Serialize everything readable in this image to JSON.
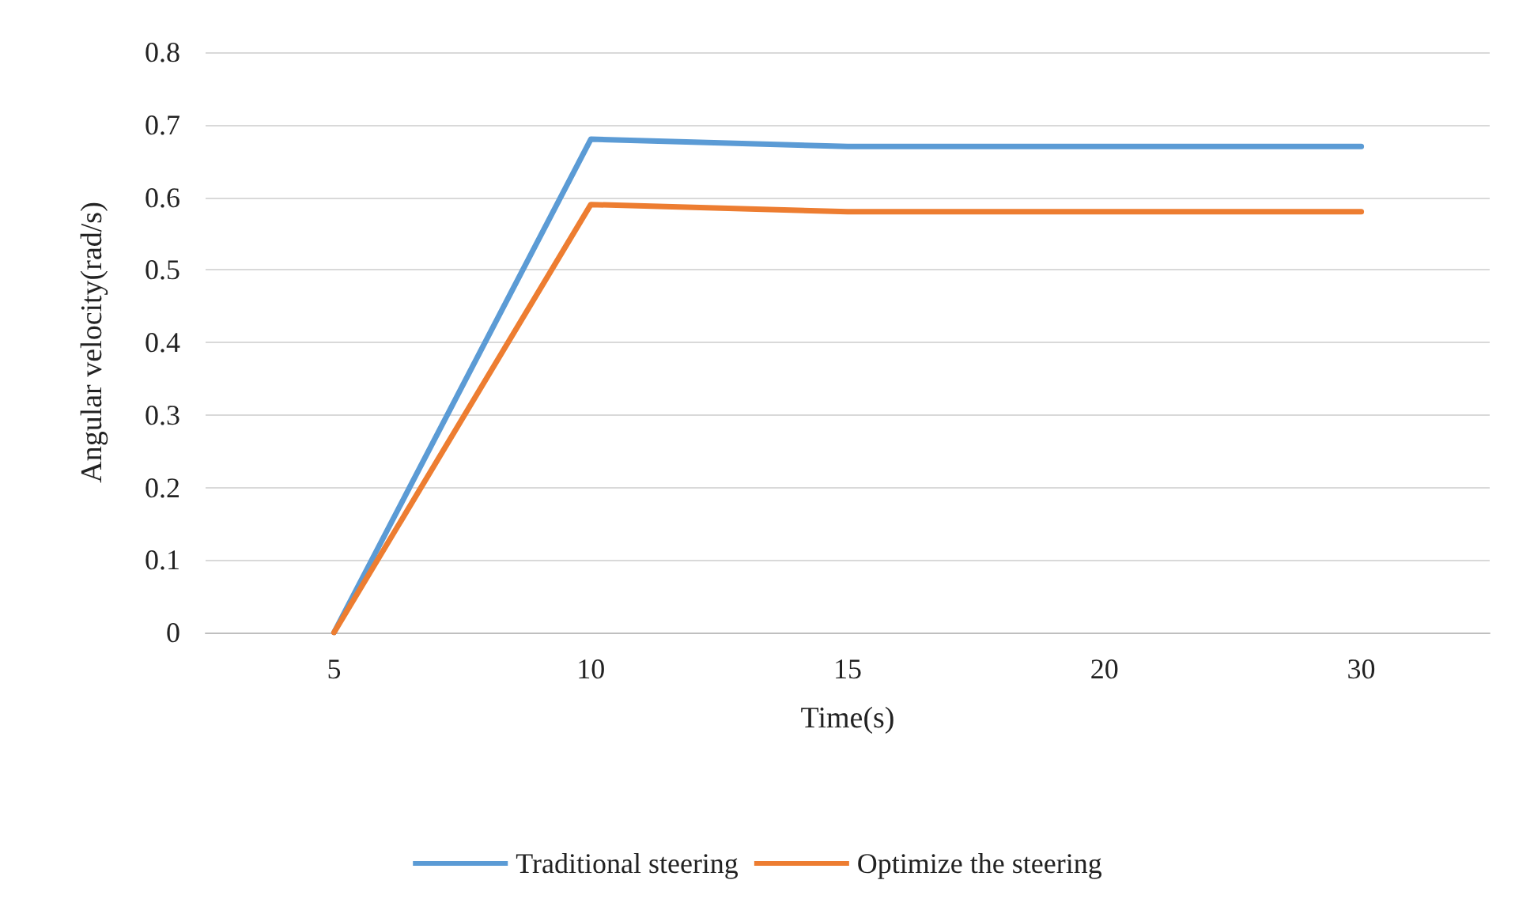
{
  "chart_data": {
    "type": "line",
    "xlabel": "Time(s)",
    "ylabel": "Angular velocity(rad/s)",
    "categories": [
      "5",
      "10",
      "15",
      "20",
      "30"
    ],
    "series": [
      {
        "name": "Traditional steering",
        "color": "#5b9bd5",
        "values": [
          0,
          0.68,
          0.67,
          0.67,
          0.67
        ]
      },
      {
        "name": "Optimize the steering",
        "color": "#ed7d31",
        "values": [
          0,
          0.59,
          0.58,
          0.58,
          0.58
        ]
      }
    ],
    "ylim": [
      0,
      0.8
    ],
    "yticks": [
      0,
      0.1,
      0.2,
      0.3,
      0.4,
      0.5,
      0.6,
      0.7,
      0.8
    ],
    "grid": "y",
    "legend": "bottom",
    "marker": "none",
    "line_style": "solid"
  }
}
